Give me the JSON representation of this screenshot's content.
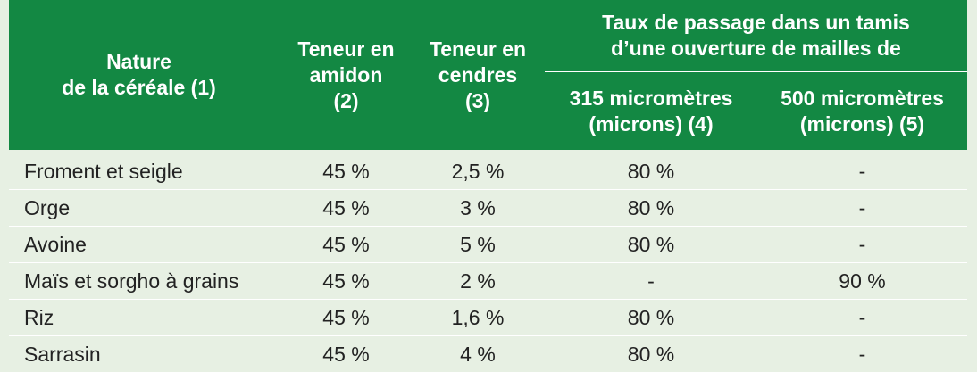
{
  "table": {
    "headers": {
      "nature": [
        "Nature",
        "de la céréale (1)"
      ],
      "amidon": [
        "Teneur en",
        "amidon",
        "(2)"
      ],
      "cendres": [
        "Teneur en",
        "cendres",
        "(3)"
      ],
      "group": [
        "Taux de passage dans un tamis",
        "d’une ouverture de mailles de"
      ],
      "sub315": [
        "315 micromètres",
        "(microns) (4)"
      ],
      "sub500": [
        "500 micromètres",
        "(microns) (5)"
      ]
    },
    "rows": [
      {
        "nature": "Froment et seigle",
        "amidon": "45 %",
        "cendres": "2,5 %",
        "t315": "80 %",
        "t500": "-"
      },
      {
        "nature": "Orge",
        "amidon": "45 %",
        "cendres": "3 %",
        "t315": "80 %",
        "t500": "-"
      },
      {
        "nature": "Avoine",
        "amidon": "45 %",
        "cendres": "5 %",
        "t315": "80 %",
        "t500": "-"
      },
      {
        "nature": "Maïs et sorgho à grains",
        "amidon": "45 %",
        "cendres": "2 %",
        "t315": "-",
        "t500": "90 %"
      },
      {
        "nature": "Riz",
        "amidon": "45 %",
        "cendres": "1,6 %",
        "t315": "80 %",
        "t500": "-"
      },
      {
        "nature": "Sarrasin",
        "amidon": "45 %",
        "cendres": "4 %",
        "t315": "80 %",
        "t500": "-"
      }
    ]
  },
  "colors": {
    "header_bg": "#138843",
    "body_bg": "#e7f0e3",
    "header_text": "#ffffff",
    "body_text": "#222222"
  }
}
